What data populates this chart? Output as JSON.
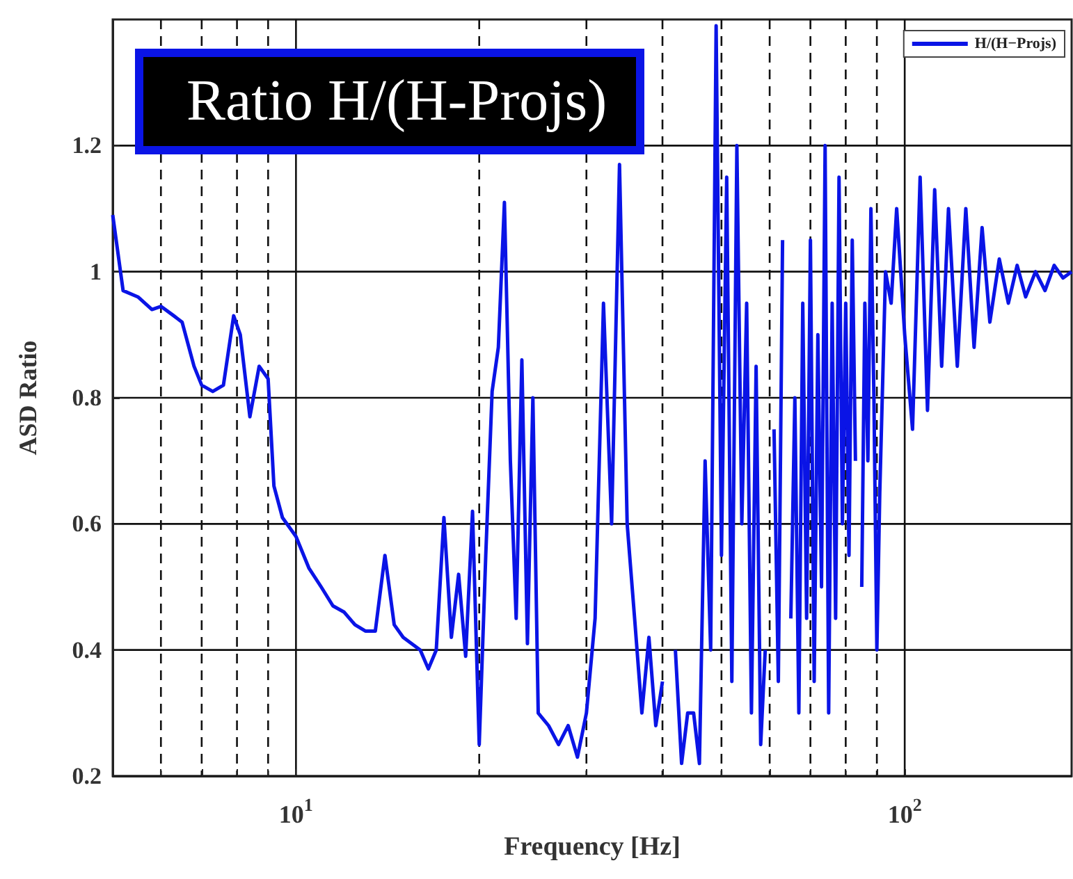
{
  "chart_data": {
    "type": "line",
    "title": "Ratio H/(H-Projs)",
    "xlabel": "Frequency [Hz]",
    "ylabel": "ASD Ratio",
    "log": "x",
    "grid": true,
    "legend": "top right",
    "marker": "none",
    "line_style": "solid",
    "xlim": [
      5,
      188
    ],
    "xticks": [
      {
        "value": 6,
        "label": null
      },
      {
        "value": 7,
        "label": null
      },
      {
        "value": 8,
        "label": null
      },
      {
        "value": 9,
        "label": null
      },
      {
        "value": 10,
        "label": "10$^{1}$"
      },
      {
        "value": 20,
        "label": null
      },
      {
        "value": 30,
        "label": null
      },
      {
        "value": 40,
        "label": null
      },
      {
        "value": 50,
        "label": null
      },
      {
        "value": 60,
        "label": null
      },
      {
        "value": 70,
        "label": null
      },
      {
        "value": 80,
        "label": null
      },
      {
        "value": 90,
        "label": null
      },
      {
        "value": 100,
        "label": "10$^{2}$"
      }
    ],
    "ylim": [
      0.2,
      1.4
    ],
    "yticks": [
      0.2,
      0.4,
      0.6,
      0.8,
      1,
      1.2
    ],
    "series": [
      {
        "name": "H/(H−Projs)",
        "color": "#0a14e6",
        "x": [
          5.0,
          5.2,
          5.5,
          5.8,
          6.0,
          6.3,
          6.5,
          6.8,
          7.0,
          7.3,
          7.6,
          7.9,
          8.1,
          8.4,
          8.7,
          9.0,
          9.2,
          9.5,
          10,
          10.5,
          11,
          11.5,
          12,
          12.5,
          13,
          13.5,
          14,
          14.5,
          15,
          16,
          16.5,
          17,
          17.5,
          18,
          18.5,
          19,
          19.5,
          20,
          20.5,
          21,
          21.5,
          22,
          22.5,
          23,
          23.5,
          24,
          24.5,
          25,
          26,
          27,
          28,
          29,
          30,
          31,
          32,
          33,
          34,
          35,
          36,
          37,
          38,
          39,
          40,
          41,
          42,
          43,
          44,
          45,
          46,
          47,
          48,
          49,
          50,
          51,
          52,
          53,
          54,
          55,
          56,
          57,
          58,
          59,
          60,
          61,
          62,
          63,
          64,
          65,
          66,
          67,
          68,
          69,
          70,
          71,
          72,
          73,
          74,
          75,
          76,
          77,
          78,
          79,
          80,
          81,
          82,
          83,
          84,
          85,
          86,
          87,
          88,
          89,
          90,
          91,
          93,
          95,
          97,
          100,
          103,
          106,
          109,
          112,
          115,
          118,
          122,
          126,
          130,
          134,
          138,
          143,
          148,
          153,
          158,
          164,
          170,
          176,
          182,
          188
        ],
        "values": [
          1.09,
          0.97,
          0.96,
          0.94,
          0.945,
          0.93,
          0.92,
          0.85,
          0.82,
          0.81,
          0.82,
          0.93,
          0.9,
          0.77,
          0.85,
          0.83,
          0.66,
          0.61,
          0.58,
          0.53,
          0.5,
          0.47,
          0.46,
          0.44,
          0.43,
          0.43,
          0.55,
          0.44,
          0.42,
          0.4,
          0.37,
          0.4,
          0.61,
          0.42,
          0.52,
          0.39,
          0.62,
          0.25,
          0.55,
          0.81,
          0.88,
          1.11,
          0.7,
          0.45,
          0.86,
          0.41,
          0.8,
          0.3,
          0.28,
          0.25,
          0.28,
          0.23,
          0.3,
          0.45,
          0.95,
          0.6,
          1.17,
          0.6,
          0.45,
          0.3,
          0.42,
          0.28,
          0.35,
          null,
          0.4,
          0.22,
          0.3,
          0.3,
          0.22,
          0.7,
          0.4,
          1.39,
          0.55,
          1.15,
          0.35,
          1.2,
          0.6,
          0.95,
          0.3,
          0.85,
          0.25,
          0.4,
          null,
          0.75,
          0.35,
          1.05,
          null,
          0.45,
          0.8,
          0.3,
          0.95,
          0.45,
          1.05,
          0.35,
          0.9,
          0.5,
          1.2,
          0.3,
          0.95,
          0.45,
          1.15,
          0.6,
          0.95,
          0.55,
          1.05,
          0.7,
          null,
          0.5,
          0.95,
          0.7,
          1.1,
          0.8,
          0.4,
          0.65,
          1.0,
          0.95,
          1.1,
          0.9,
          0.75,
          1.15,
          0.78,
          1.13,
          0.85,
          1.1,
          0.85,
          1.1,
          0.88,
          1.07,
          0.92,
          1.02,
          0.95,
          1.01,
          0.96,
          1.0,
          0.97,
          1.01,
          0.99,
          1.0
        ]
      }
    ]
  }
}
